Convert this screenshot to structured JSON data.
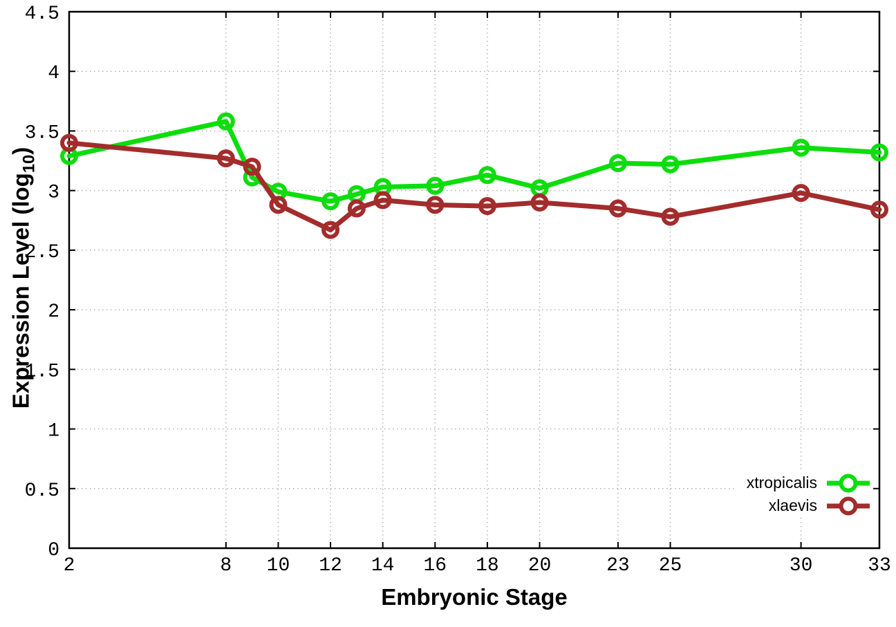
{
  "chart_data": {
    "type": "line",
    "title": "",
    "xlabel": "Embryonic Stage",
    "ylabel": {
      "prefix": "Expression Level (log",
      "sub": "10",
      "suffix": ")"
    },
    "x": [
      2,
      8,
      9,
      10,
      12,
      13,
      14,
      16,
      18,
      20,
      23,
      25,
      30,
      33
    ],
    "xlim": [
      2,
      33
    ],
    "ylim": [
      0,
      4.5
    ],
    "xticks": {
      "values": [
        2,
        8,
        10,
        12,
        14,
        16,
        18,
        20,
        23,
        25,
        30,
        33
      ],
      "labels": [
        "2",
        "8",
        "10",
        "12",
        "14",
        "16",
        "18",
        "20",
        "23",
        "25",
        "30",
        "33"
      ]
    },
    "yticks": {
      "values": [
        0,
        0.5,
        1,
        1.5,
        2,
        2.5,
        3,
        3.5,
        4,
        4.5
      ],
      "labels": [
        "0",
        "0.5",
        "1",
        "1.5",
        "2",
        "2.5",
        "3",
        "3.5",
        "4",
        "4.5"
      ]
    },
    "grid": true,
    "legend_position": "bottom-right-inside",
    "series": [
      {
        "name": "xtropicalis",
        "color": "#0ddd0d",
        "marker": "open-circle",
        "values": [
          3.29,
          3.58,
          3.11,
          2.99,
          2.91,
          2.97,
          3.03,
          3.04,
          3.13,
          3.02,
          3.23,
          3.22,
          3.36,
          3.32
        ]
      },
      {
        "name": "xlaevis",
        "color": "#a32c2c",
        "marker": "open-circle",
        "values": [
          3.4,
          3.27,
          3.2,
          2.88,
          2.67,
          2.85,
          2.92,
          2.88,
          2.87,
          2.9,
          2.85,
          2.78,
          2.98,
          2.84
        ]
      }
    ]
  },
  "colors": {
    "background": "#ffffff",
    "border": "#000000",
    "grid": "#b0b0b0",
    "tick_label": "#000000"
  }
}
